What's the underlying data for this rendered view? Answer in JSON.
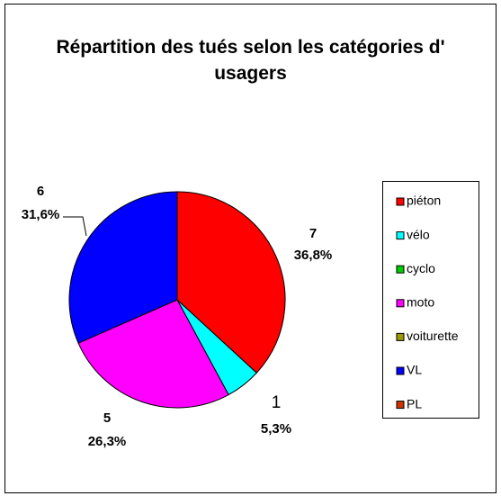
{
  "chart_data": {
    "type": "pie",
    "title": "Répartition des tués selon les catégories d' usagers",
    "categories": [
      "piéton",
      "vélo",
      "cyclo",
      "moto",
      "voiturette",
      "VL",
      "PL"
    ],
    "values": [
      7,
      1,
      0,
      5,
      0,
      6,
      0
    ],
    "percents": [
      36.8,
      5.3,
      null,
      26.3,
      null,
      31.6,
      null
    ],
    "percent_labels": [
      "36,8%",
      "5,3%",
      null,
      "26,3%",
      null,
      "31,6%",
      null
    ],
    "colors": [
      "#ff0000",
      "#00ffff",
      "#00cc00",
      "#ff00ff",
      "#999900",
      "#0000ff",
      "#cc3300"
    ],
    "legend": "right"
  }
}
